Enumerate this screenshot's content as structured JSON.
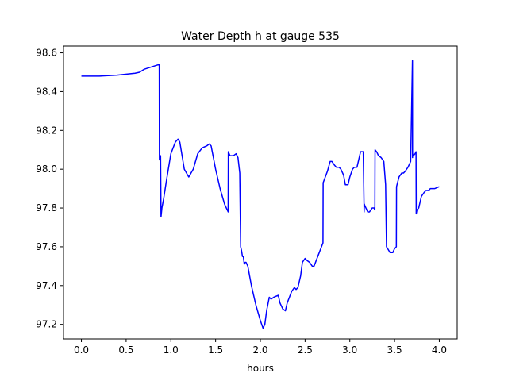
{
  "chart_data": {
    "type": "line",
    "title": "Water Depth h at gauge 535",
    "xlabel": "hours",
    "ylabel": "",
    "xlim": [
      -0.2,
      4.2
    ],
    "ylim": [
      97.125,
      98.635
    ],
    "xticks": [
      0.0,
      0.5,
      1.0,
      1.5,
      2.0,
      2.5,
      3.0,
      3.5,
      4.0
    ],
    "xtick_labels": [
      "0.0",
      "0.5",
      "1.0",
      "1.5",
      "2.0",
      "2.5",
      "3.0",
      "3.5",
      "4.0"
    ],
    "yticks": [
      97.2,
      97.4,
      97.6,
      97.8,
      98.0,
      98.2,
      98.4,
      98.6
    ],
    "ytick_labels": [
      "97.2",
      "97.4",
      "97.6",
      "97.8",
      "98.0",
      "98.2",
      "98.4",
      "98.6"
    ],
    "grid": false,
    "legend": "none",
    "series": [
      {
        "color": "#0000ff",
        "x": [
          0.0,
          0.2,
          0.4,
          0.6,
          0.65,
          0.7,
          0.8,
          0.87,
          0.872,
          0.875,
          0.88,
          0.885,
          0.89,
          0.9,
          0.92,
          0.95,
          1.0,
          1.05,
          1.08,
          1.1,
          1.15,
          1.2,
          1.25,
          1.3,
          1.35,
          1.4,
          1.43,
          1.45,
          1.5,
          1.55,
          1.6,
          1.64,
          1.642,
          1.66,
          1.7,
          1.73,
          1.75,
          1.77,
          1.78,
          1.79,
          1.8,
          1.81,
          1.82,
          1.83,
          1.84,
          1.86,
          1.88,
          1.9,
          1.95,
          2.0,
          2.03,
          2.05,
          2.07,
          2.1,
          2.12,
          2.15,
          2.2,
          2.22,
          2.25,
          2.28,
          2.3,
          2.35,
          2.38,
          2.4,
          2.42,
          2.45,
          2.47,
          2.5,
          2.52,
          2.55,
          2.58,
          2.6,
          2.65,
          2.7,
          2.702,
          2.75,
          2.78,
          2.8,
          2.83,
          2.85,
          2.88,
          2.9,
          2.93,
          2.95,
          2.98,
          3.0,
          3.03,
          3.05,
          3.08,
          3.1,
          3.12,
          3.15,
          3.16,
          3.162,
          3.17,
          3.2,
          3.22,
          3.25,
          3.27,
          3.28,
          3.282,
          3.3,
          3.32,
          3.35,
          3.38,
          3.4,
          3.41,
          3.45,
          3.48,
          3.5,
          3.52,
          3.522,
          3.55,
          3.58,
          3.6,
          3.62,
          3.65,
          3.68,
          3.7,
          3.701,
          3.702,
          3.71,
          3.73,
          3.74,
          3.742,
          3.75,
          3.77,
          3.8,
          3.83,
          3.85,
          3.88,
          3.9,
          3.95,
          4.0
        ],
        "y": [
          98.48,
          98.48,
          98.485,
          98.495,
          98.5,
          98.515,
          98.53,
          98.54,
          98.05,
          98.07,
          98.04,
          98.07,
          97.755,
          97.8,
          97.85,
          97.94,
          98.08,
          98.14,
          98.155,
          98.14,
          98.0,
          97.96,
          98.0,
          98.08,
          98.11,
          98.12,
          98.13,
          98.12,
          98.0,
          97.9,
          97.82,
          97.78,
          98.09,
          98.07,
          98.07,
          98.08,
          98.06,
          97.98,
          97.6,
          97.58,
          97.55,
          97.55,
          97.51,
          97.52,
          97.52,
          97.5,
          97.45,
          97.4,
          97.3,
          97.22,
          97.18,
          97.2,
          97.27,
          97.34,
          97.33,
          97.34,
          97.35,
          97.31,
          97.28,
          97.27,
          97.31,
          97.37,
          97.39,
          97.38,
          97.39,
          97.45,
          97.52,
          97.54,
          97.53,
          97.52,
          97.5,
          97.5,
          97.56,
          97.62,
          97.93,
          97.99,
          98.04,
          98.04,
          98.02,
          98.01,
          98.01,
          98.0,
          97.97,
          97.92,
          97.92,
          97.96,
          98.0,
          98.01,
          98.01,
          98.05,
          98.09,
          98.09,
          97.78,
          97.82,
          97.81,
          97.78,
          97.78,
          97.8,
          97.8,
          97.79,
          98.1,
          98.09,
          98.07,
          98.06,
          98.04,
          97.92,
          97.6,
          97.57,
          97.57,
          97.59,
          97.6,
          97.91,
          97.96,
          97.98,
          97.98,
          97.99,
          98.01,
          98.04,
          98.56,
          98.06,
          98.08,
          98.07,
          98.08,
          98.09,
          97.77,
          97.79,
          97.8,
          97.86,
          97.88,
          97.89,
          97.89,
          97.9,
          97.9,
          97.91
        ]
      }
    ]
  }
}
